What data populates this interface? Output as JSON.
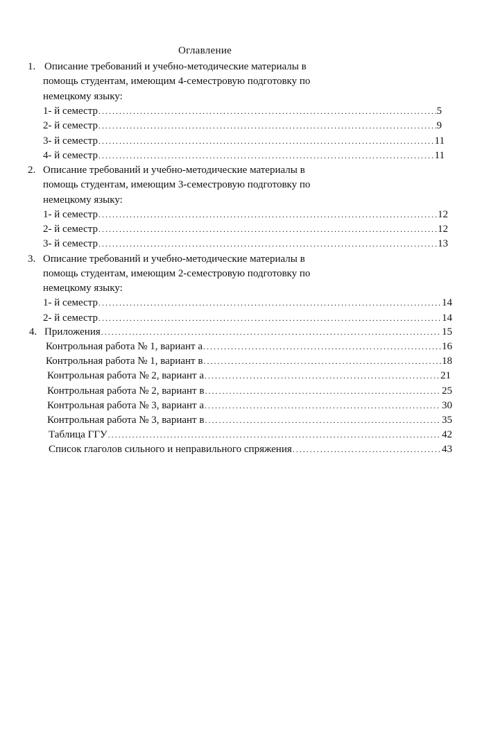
{
  "title": "Оглавление",
  "sections": [
    {
      "number": "1.",
      "lines": [
        "Описание требований и учебно-методические материалы в",
        "помощь  студентам, имеющим 4-семестровую подготовку по",
        "немецкому  языку:"
      ],
      "entries": [
        {
          "label": "1- й семестр",
          "page": "5"
        },
        {
          "label": "2- й семестр",
          "page": "9"
        },
        {
          "label": "3- й семестр",
          "page": "11"
        },
        {
          "label": "4- й семестр",
          "page": "11"
        }
      ]
    },
    {
      "number": "2.",
      "lines": [
        "Описание требований и учебно-методические материалы в",
        "помощь студентам, имеющим 3-семестровую подготовку по",
        "немецкому языку:"
      ],
      "entries": [
        {
          "label": "1- й семестр",
          "page": "12"
        },
        {
          "label": "2- й семестр",
          "page": "12"
        },
        {
          "label": "3- й семестр",
          "page": "13"
        }
      ]
    },
    {
      "number": "3.",
      "lines": [
        "Описание требований и учебно-методические материалы в",
        "помощь студентам, имеющим 2-семестровую подготовку по",
        "немецкому языку:"
      ],
      "entries": [
        {
          "label": "1- й семестр",
          "page": "14"
        },
        {
          "label": "2- й семестр",
          "page": "14"
        }
      ]
    },
    {
      "number": "4.",
      "label": "Приложения",
      "page": "15",
      "entries": [
        {
          "label": "Контрольная работа № 1, вариант а",
          "page": "16"
        },
        {
          "label": "Контрольная работа № 1, вариант в",
          "page": "18"
        },
        {
          "label": "Контрольная работа № 2, вариант а",
          "page": "21"
        },
        {
          "label": "Контрольная работа № 2, вариант в",
          "page": "25"
        },
        {
          "label": "Контрольная работа № 3, вариант а",
          "page": "30"
        },
        {
          "label": "Контрольная работа № 3, вариант в",
          "page": "35"
        },
        {
          "label": "Таблица ГГУ",
          "page": "42"
        },
        {
          "label": "Список глаголов сильного и неправильного спряжения",
          "page": "43"
        }
      ]
    }
  ]
}
